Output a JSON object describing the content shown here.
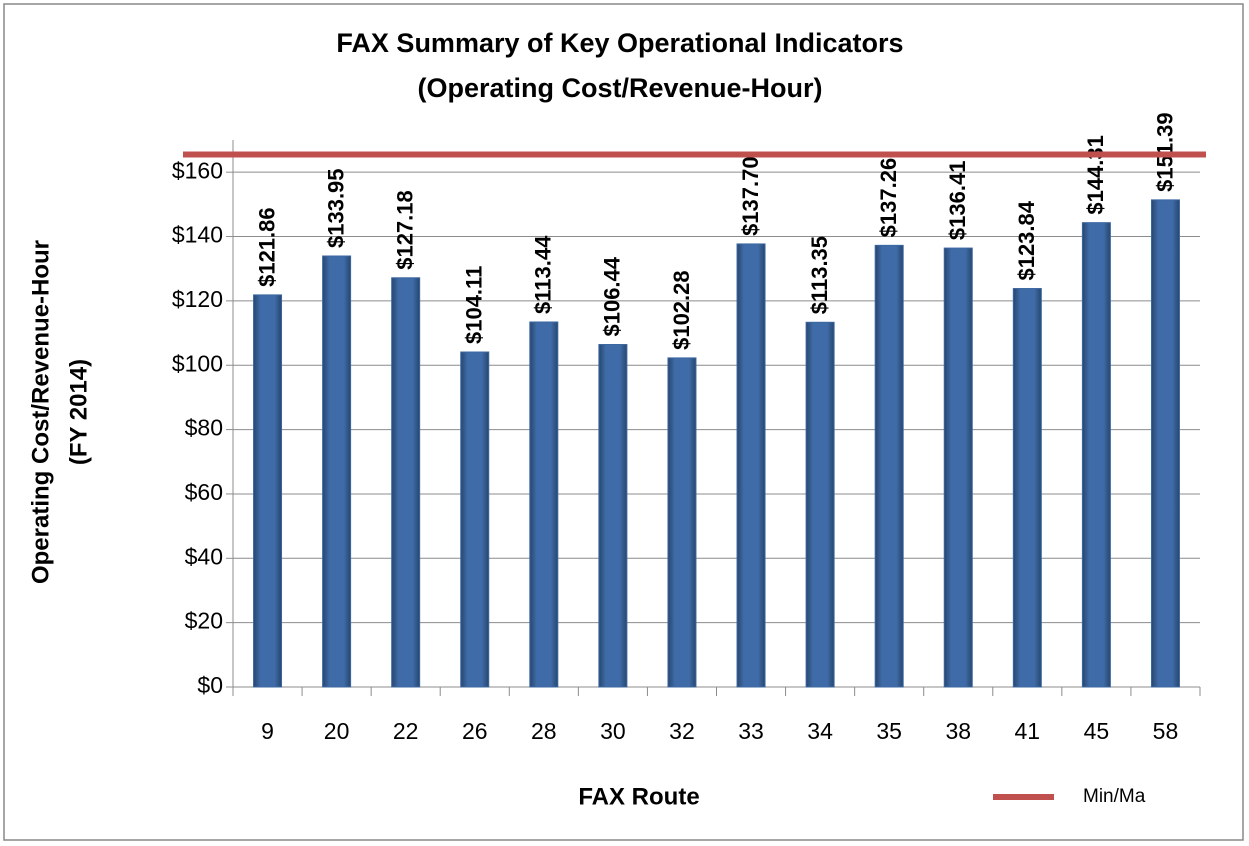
{
  "chart_data": {
    "type": "bar",
    "title": [
      "FAX Summary of Key Operational Indicators",
      "(Operating Cost/Revenue-Hour)"
    ],
    "x_label": "FAX Route",
    "y_label": [
      "Operating Cost/Revenue-Hour",
      "(FY 2014)"
    ],
    "categories": [
      "9",
      "20",
      "22",
      "26",
      "28",
      "30",
      "32",
      "33",
      "34",
      "35",
      "38",
      "41",
      "45",
      "58"
    ],
    "values": [
      121.86,
      133.95,
      127.18,
      104.11,
      113.44,
      106.44,
      102.28,
      137.7,
      113.35,
      137.26,
      136.41,
      123.84,
      144.31,
      151.39
    ],
    "value_labels": [
      "$121.86",
      "$133.95",
      "$127.18",
      "$104.11",
      "$113.44",
      "$106.44",
      "$102.28",
      "$137.70",
      "$113.35",
      "$137.26",
      "$136.41",
      "$123.84",
      "$144.31",
      "$151.39"
    ],
    "color": "#3b67a0",
    "reference_line": {
      "name": "Min/Ma",
      "value": 165.5,
      "color": "#c0504d"
    },
    "ylim": [
      0,
      170
    ],
    "yticks": [
      {
        "value": 0,
        "label": "$0"
      },
      {
        "value": 20,
        "label": "$20"
      },
      {
        "value": 40,
        "label": "$40"
      },
      {
        "value": 60,
        "label": "$60"
      },
      {
        "value": 80,
        "label": "$80"
      },
      {
        "value": 100,
        "label": "$100"
      },
      {
        "value": 120,
        "label": "$120"
      },
      {
        "value": 140,
        "label": "$140"
      },
      {
        "value": 160,
        "label": "$160"
      }
    ],
    "grid": true,
    "legend": "bottom-right"
  }
}
